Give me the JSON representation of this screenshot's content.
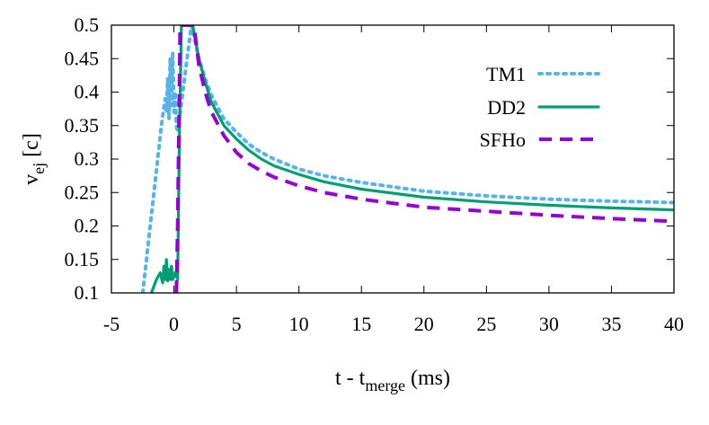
{
  "chart_data": {
    "type": "line",
    "xlabel_main": "t - t",
    "xlabel_sub": "merge",
    "xlabel_tail": " (ms)",
    "ylabel_main": "v",
    "ylabel_sub": "ej",
    "ylabel_tail": " [c]",
    "xlim": [
      -5,
      40
    ],
    "ylim": [
      0.1,
      0.5
    ],
    "xticks": [
      -5,
      0,
      5,
      10,
      15,
      20,
      25,
      30,
      35,
      40
    ],
    "yticks": [
      0.1,
      0.15,
      0.2,
      0.25,
      0.3,
      0.35,
      0.4,
      0.45,
      0.5
    ],
    "xtick_labels": [
      "-5",
      "0",
      "5",
      "10",
      "15",
      "20",
      "25",
      "30",
      "35",
      "40"
    ],
    "ytick_labels": [
      "0.1",
      "0.15",
      "0.2",
      "0.25",
      "0.3",
      "0.35",
      "0.4",
      "0.45",
      "0.5"
    ],
    "grid": false,
    "legend_position": "top-right",
    "series": [
      {
        "name": "TM1",
        "color": "#56b4e9",
        "dash": "dotted",
        "points": [
          [
            -2.5,
            0.1
          ],
          [
            -2.2,
            0.15
          ],
          [
            -1.9,
            0.2
          ],
          [
            -1.6,
            0.25
          ],
          [
            -1.3,
            0.3
          ],
          [
            -1.0,
            0.35
          ],
          [
            -0.7,
            0.39
          ],
          [
            -0.6,
            0.37
          ],
          [
            -0.5,
            0.42
          ],
          [
            -0.4,
            0.36
          ],
          [
            -0.3,
            0.45
          ],
          [
            -0.2,
            0.38
          ],
          [
            -0.1,
            0.46
          ],
          [
            0.0,
            0.37
          ],
          [
            0.1,
            0.4
          ],
          [
            0.2,
            0.35
          ],
          [
            0.3,
            0.34
          ],
          [
            1.4,
            0.5
          ],
          [
            2,
            0.45
          ],
          [
            2.5,
            0.42
          ],
          [
            3,
            0.395
          ],
          [
            4,
            0.36
          ],
          [
            5,
            0.34
          ],
          [
            6,
            0.322
          ],
          [
            7,
            0.31
          ],
          [
            8,
            0.3
          ],
          [
            10,
            0.285
          ],
          [
            12,
            0.275
          ],
          [
            15,
            0.265
          ],
          [
            20,
            0.252
          ],
          [
            25,
            0.245
          ],
          [
            30,
            0.24
          ],
          [
            35,
            0.237
          ],
          [
            40,
            0.235
          ]
        ]
      },
      {
        "name": "DD2",
        "color": "#009e73",
        "dash": "solid",
        "points": [
          [
            -1.8,
            0.1
          ],
          [
            -1.4,
            0.12
          ],
          [
            -1.1,
            0.13
          ],
          [
            -0.9,
            0.115
          ],
          [
            -0.8,
            0.14
          ],
          [
            -0.7,
            0.12
          ],
          [
            -0.6,
            0.15
          ],
          [
            -0.5,
            0.118
          ],
          [
            -0.4,
            0.135
          ],
          [
            -0.3,
            0.12
          ],
          [
            -0.2,
            0.14
          ],
          [
            -0.1,
            0.12
          ],
          [
            0.0,
            0.125
          ],
          [
            0.1,
            0.13
          ],
          [
            0.3,
            0.12
          ],
          [
            0.45,
            0.35
          ],
          [
            0.6,
            0.5
          ],
          [
            1.5,
            0.5
          ],
          [
            2,
            0.45
          ],
          [
            2.5,
            0.415
          ],
          [
            3,
            0.385
          ],
          [
            4,
            0.35
          ],
          [
            5,
            0.33
          ],
          [
            6,
            0.313
          ],
          [
            7,
            0.3
          ],
          [
            8,
            0.29
          ],
          [
            10,
            0.277
          ],
          [
            12,
            0.266
          ],
          [
            15,
            0.255
          ],
          [
            20,
            0.243
          ],
          [
            25,
            0.236
          ],
          [
            30,
            0.231
          ],
          [
            35,
            0.227
          ],
          [
            40,
            0.224
          ]
        ]
      },
      {
        "name": "SFHo",
        "color": "#9400d3",
        "dash": "dashed",
        "points": [
          [
            0.2,
            0.1
          ],
          [
            0.3,
            0.2
          ],
          [
            0.4,
            0.35
          ],
          [
            0.5,
            0.5
          ],
          [
            1.6,
            0.5
          ],
          [
            2,
            0.44
          ],
          [
            2.5,
            0.4
          ],
          [
            3,
            0.37
          ],
          [
            4,
            0.335
          ],
          [
            5,
            0.31
          ],
          [
            6,
            0.293
          ],
          [
            7,
            0.282
          ],
          [
            8,
            0.273
          ],
          [
            10,
            0.26
          ],
          [
            12,
            0.25
          ],
          [
            15,
            0.24
          ],
          [
            20,
            0.228
          ],
          [
            25,
            0.222
          ],
          [
            30,
            0.216
          ],
          [
            35,
            0.211
          ],
          [
            40,
            0.207
          ]
        ]
      }
    ]
  }
}
